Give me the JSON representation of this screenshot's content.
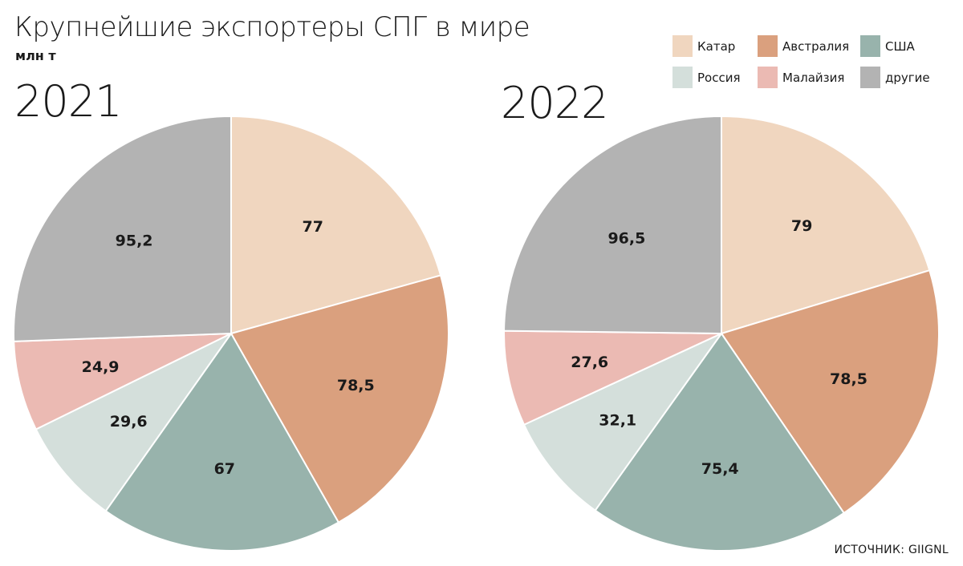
{
  "title": "Крупнейшие экспортеры СПГ в мире",
  "unit": "млн т",
  "source": "ИСТОЧНИК: GIIGNL",
  "legend": [
    {
      "label": "Катар",
      "color": "#f0d6bf"
    },
    {
      "label": "Австралия",
      "color": "#daa07e"
    },
    {
      "label": "США",
      "color": "#98b3ac"
    },
    {
      "label": "Россия",
      "color": "#d4dfdb"
    },
    {
      "label": "Малайзия",
      "color": "#ebbab3"
    },
    {
      "label": "другие",
      "color": "#b3b3b3"
    }
  ],
  "chart_data": [
    {
      "type": "pie",
      "title": "2021",
      "categories": [
        "Катар",
        "Австралия",
        "США",
        "Россия",
        "Малайзия",
        "другие"
      ],
      "values": [
        77,
        78.5,
        67,
        29.6,
        24.9,
        95.2
      ],
      "value_labels": [
        "77",
        "78,5",
        "67",
        "29,6",
        "24,9",
        "95,2"
      ],
      "colors": [
        "#f0d6bf",
        "#daa07e",
        "#98b3ac",
        "#d4dfdb",
        "#ebbab3",
        "#b3b3b3"
      ],
      "legend_position": "top-right"
    },
    {
      "type": "pie",
      "title": "2022",
      "categories": [
        "Катар",
        "Австралия",
        "США",
        "Россия",
        "Малайзия",
        "другие"
      ],
      "values": [
        79,
        78.5,
        75.4,
        32.1,
        27.6,
        96.5
      ],
      "value_labels": [
        "79",
        "78,5",
        "75,4",
        "32,1",
        "27,6",
        "96,5"
      ],
      "colors": [
        "#f0d6bf",
        "#daa07e",
        "#98b3ac",
        "#d4dfdb",
        "#ebbab3",
        "#b3b3b3"
      ],
      "legend_position": "top-right"
    }
  ]
}
